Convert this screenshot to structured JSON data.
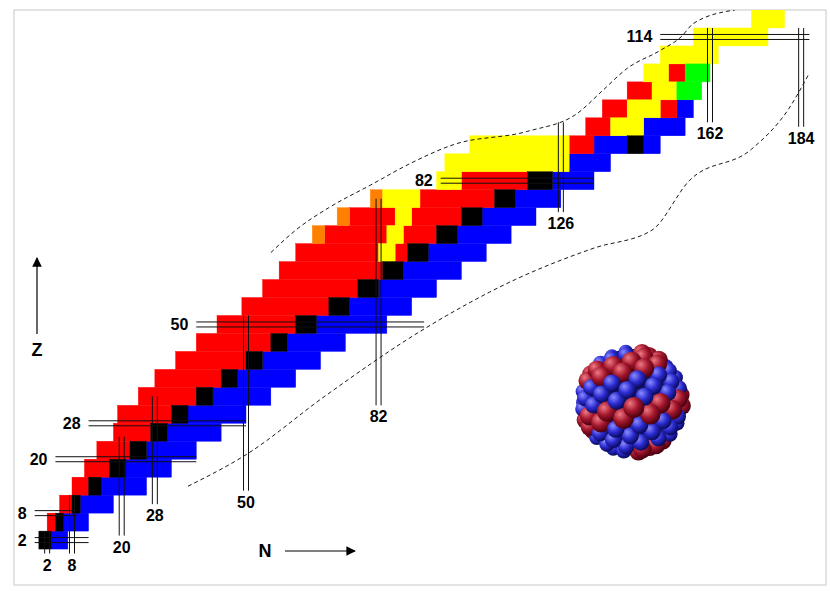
{
  "chart_data": {
    "type": "nuclide_chart",
    "x_label": "N",
    "y_label": "Z",
    "xlim": [
      -6,
      190
    ],
    "ylim": [
      -8,
      120
    ],
    "tick_labels": false,
    "regions": [
      {
        "color": "#0000ff",
        "cells": [
          [
            0,
            4,
            3,
            7
          ],
          [
            4,
            8,
            6,
            12
          ],
          [
            8,
            12,
            10,
            18
          ],
          [
            12,
            16,
            15,
            26
          ],
          [
            16,
            20,
            21,
            32
          ],
          [
            20,
            24,
            26,
            38
          ],
          [
            24,
            28,
            31,
            44
          ],
          [
            28,
            32,
            36,
            50
          ],
          [
            32,
            36,
            42,
            56
          ],
          [
            36,
            40,
            48,
            62
          ],
          [
            40,
            44,
            54,
            68
          ],
          [
            44,
            48,
            60,
            74
          ],
          [
            48,
            52,
            67,
            84
          ],
          [
            52,
            56,
            75,
            90
          ],
          [
            56,
            60,
            82,
            96
          ],
          [
            60,
            64,
            88,
            102
          ],
          [
            64,
            68,
            94,
            108
          ],
          [
            68,
            72,
            101,
            114
          ],
          [
            72,
            76,
            107,
            120
          ],
          [
            76,
            80,
            115,
            126
          ],
          [
            80,
            84,
            124,
            134
          ],
          [
            84,
            88,
            128,
            138
          ],
          [
            88,
            92,
            134,
            142
          ],
          [
            88,
            92,
            146,
            150
          ],
          [
            92,
            96,
            146,
            156
          ],
          [
            96,
            100,
            154,
            158
          ]
        ]
      },
      {
        "color": "#ff0000",
        "cells": [
          [
            4,
            8,
            2,
            4
          ],
          [
            8,
            12,
            5,
            8
          ],
          [
            12,
            16,
            8,
            12
          ],
          [
            16,
            20,
            11,
            17
          ],
          [
            20,
            24,
            14,
            22
          ],
          [
            24,
            28,
            18,
            27
          ],
          [
            28,
            32,
            19,
            32
          ],
          [
            32,
            36,
            24,
            38
          ],
          [
            36,
            40,
            28,
            44
          ],
          [
            40,
            44,
            33,
            50
          ],
          [
            44,
            48,
            38,
            56
          ],
          [
            48,
            52,
            43,
            62
          ],
          [
            52,
            56,
            49,
            70
          ],
          [
            56,
            60,
            54,
            77
          ],
          [
            60,
            64,
            58,
            83
          ],
          [
            64,
            68,
            62,
            82
          ],
          [
            64,
            68,
            86,
            89
          ],
          [
            68,
            72,
            69,
            84
          ],
          [
            68,
            72,
            88,
            96
          ],
          [
            72,
            76,
            75,
            86
          ],
          [
            72,
            76,
            90,
            102
          ],
          [
            76,
            80,
            92,
            110
          ],
          [
            80,
            84,
            102,
            118
          ],
          [
            88,
            92,
            128,
            134
          ],
          [
            92,
            96,
            132,
            138
          ],
          [
            96,
            100,
            136,
            142
          ],
          [
            96,
            100,
            150,
            154
          ],
          [
            100,
            104,
            142,
            148
          ],
          [
            104,
            108,
            152,
            156
          ]
        ]
      },
      {
        "color": "#ff8000",
        "cells": [
          [
            68,
            72,
            66,
            69
          ],
          [
            72,
            76,
            72,
            75
          ],
          [
            76,
            80,
            80,
            83
          ]
        ]
      },
      {
        "color": "#ffff00",
        "cells": [
          [
            64,
            68,
            82,
            86
          ],
          [
            68,
            72,
            84,
            88
          ],
          [
            72,
            76,
            86,
            90
          ],
          [
            76,
            80,
            83,
            92
          ],
          [
            80,
            84,
            96,
            102
          ],
          [
            84,
            88,
            98,
            128
          ],
          [
            88,
            92,
            104,
            128
          ],
          [
            92,
            96,
            138,
            146
          ],
          [
            96,
            100,
            142,
            150
          ],
          [
            100,
            104,
            148,
            154
          ],
          [
            104,
            108,
            146,
            152
          ],
          [
            108,
            112,
            150,
            164
          ],
          [
            112,
            116,
            158,
            176
          ],
          [
            116,
            120,
            172,
            180
          ]
        ]
      },
      {
        "color": "#00ff00",
        "cells": [
          [
            100,
            104,
            154,
            160
          ],
          [
            104,
            108,
            156,
            162
          ]
        ]
      },
      {
        "color": "#000000",
        "cells": [
          [
            0,
            4,
            0,
            3
          ],
          [
            4,
            8,
            4,
            6
          ],
          [
            8,
            12,
            8,
            10
          ],
          [
            12,
            16,
            12,
            15
          ],
          [
            16,
            20,
            17,
            21
          ],
          [
            20,
            24,
            22,
            26
          ],
          [
            24,
            28,
            27,
            31
          ],
          [
            28,
            32,
            32,
            36
          ],
          [
            32,
            36,
            38,
            42
          ],
          [
            36,
            40,
            44,
            48
          ],
          [
            40,
            44,
            50,
            54
          ],
          [
            44,
            48,
            56,
            60
          ],
          [
            48,
            52,
            62,
            67
          ],
          [
            52,
            56,
            70,
            75
          ],
          [
            56,
            60,
            77,
            82
          ],
          [
            60,
            64,
            83,
            88
          ],
          [
            64,
            68,
            89,
            94
          ],
          [
            68,
            72,
            96,
            101
          ],
          [
            72,
            76,
            102,
            107
          ],
          [
            76,
            80,
            110,
            115
          ],
          [
            80,
            84,
            118,
            124
          ],
          [
            88,
            92,
            142,
            146
          ]
        ]
      }
    ],
    "magic_numbers": {
      "z": [
        {
          "value": 2,
          "range": [
            -1,
            12
          ]
        },
        {
          "value": 8,
          "range": [
            -1,
            9
          ]
        },
        {
          "value": 20,
          "range": [
            4,
            38
          ]
        },
        {
          "value": 28,
          "range": [
            12,
            50
          ]
        },
        {
          "value": 50,
          "range": [
            38,
            93
          ]
        },
        {
          "value": 82,
          "range": [
            97,
            134
          ]
        },
        {
          "value": 114,
          "range": [
            150,
            186
          ]
        }
      ],
      "n": [
        {
          "value": 2,
          "range": [
            -1,
            4
          ]
        },
        {
          "value": 8,
          "range": [
            -1,
            12
          ]
        },
        {
          "value": 20,
          "range": [
            3,
            25
          ]
        },
        {
          "value": 28,
          "range": [
            10,
            34
          ]
        },
        {
          "value": 50,
          "range": [
            13,
            52
          ]
        },
        {
          "value": 82,
          "range": [
            32,
            78
          ]
        },
        {
          "value": 126,
          "range": [
            75,
            95
          ]
        },
        {
          "value": 162,
          "range": [
            95,
            116
          ]
        },
        {
          "value": 184,
          "range": [
            94,
            116
          ]
        }
      ]
    },
    "drip_lines": [
      {
        "line_style": "dashed",
        "n": [
          56,
          62,
          70,
          80,
          90,
          100,
          118,
          130,
          136,
          142,
          150,
          155,
          158,
          168
        ],
        "z": [
          66,
          71,
          76,
          81,
          86,
          90,
          93,
          97,
          102,
          107,
          111,
          114,
          117,
          120
        ]
      },
      {
        "line_style": "dashed",
        "n": [
          36,
          50,
          69,
          93,
          115,
          134,
          148,
          157,
          172,
          181,
          186
        ],
        "z": [
          14,
          21,
          34,
          49,
          60,
          67,
          71,
          82,
          89,
          98,
          106
        ]
      }
    ]
  }
}
